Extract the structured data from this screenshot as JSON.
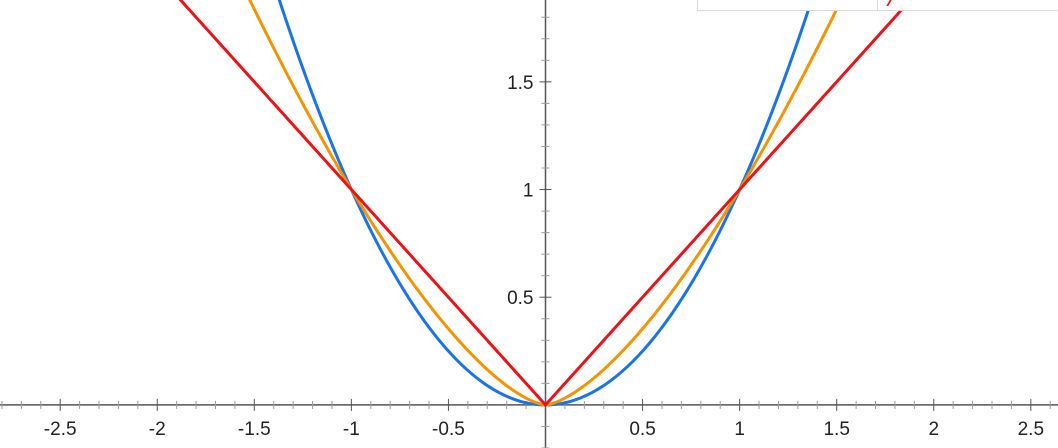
{
  "chart_data": {
    "type": "line",
    "title": "",
    "xlabel": "",
    "ylabel": "",
    "xlim": [
      -2.81,
      2.64
    ],
    "ylim": [
      -0.2,
      1.88
    ],
    "grid": false,
    "x_ticks": [
      {
        "v": -2.5,
        "label": "-2.5"
      },
      {
        "v": -2,
        "label": "-2"
      },
      {
        "v": -1.5,
        "label": "-1.5"
      },
      {
        "v": -1,
        "label": "-1"
      },
      {
        "v": -0.5,
        "label": "-0.5"
      },
      {
        "v": 0.5,
        "label": "0.5"
      },
      {
        "v": 1,
        "label": "1"
      },
      {
        "v": 1.5,
        "label": "1.5"
      },
      {
        "v": 2,
        "label": "2"
      },
      {
        "v": 2.5,
        "label": "2.5"
      }
    ],
    "y_ticks": [
      {
        "v": 0.5,
        "label": "0.5"
      },
      {
        "v": 1,
        "label": "1"
      },
      {
        "v": 1.5,
        "label": "1.5"
      }
    ],
    "series": [
      {
        "color": "#1a73e8",
        "exponent": 2,
        "x_range": [
          -1.45,
          1.45
        ]
      },
      {
        "color": "#f29300",
        "exponent": 1.5,
        "x_range": [
          -1.65,
          1.65
        ]
      },
      {
        "color": "#e8141a",
        "exponent": 1,
        "x_range": [
          -2.0,
          2.0
        ]
      }
    ]
  }
}
